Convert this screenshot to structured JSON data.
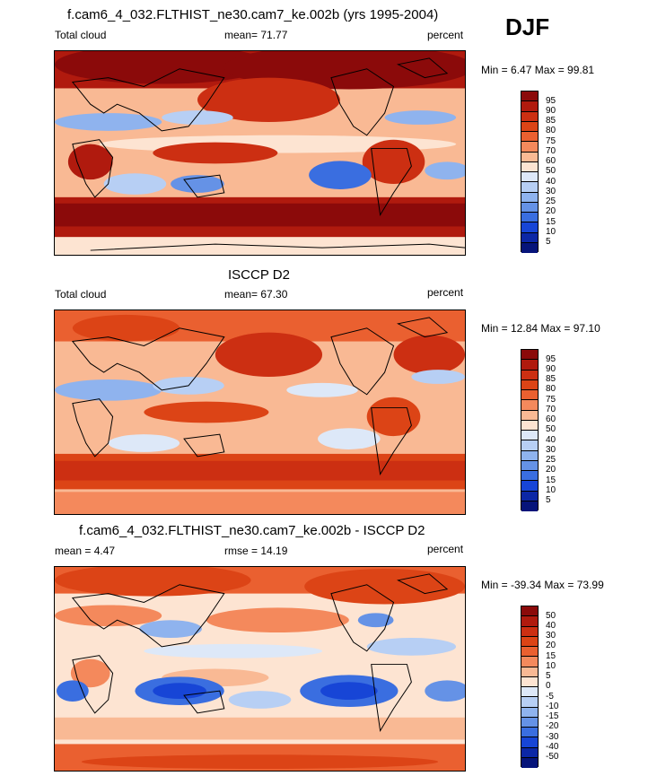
{
  "season": "DJF",
  "panels": [
    {
      "title": "f.cam6_4_032.FLTHIST_ne30.cam7_ke.002b (yrs 1995-2004)",
      "left_label": "Total cloud",
      "stat_label": "mean=  71.77",
      "units": "percent",
      "minmax": "Min =   6.47 Max =  99.81",
      "colorbar_labels": [
        "95",
        "90",
        "85",
        "80",
        "75",
        "70",
        "60",
        "50",
        "40",
        "30",
        "25",
        "20",
        "15",
        "10",
        "5"
      ],
      "colors": [
        "#8b0a0a",
        "#b01a0e",
        "#cc2f12",
        "#dc4416",
        "#ea6030",
        "#f4895c",
        "#f9b994",
        "#fde4d2",
        "#dde8f8",
        "#b7cff4",
        "#8fb3ee",
        "#6592e6",
        "#3a6ee0",
        "#1745d6",
        "#0c27a6",
        "#06147a"
      ]
    },
    {
      "title": "ISCCP D2",
      "left_label": "Total cloud",
      "stat_label": "mean=  67.30",
      "units": "percent",
      "minmax": "Min =  12.84 Max =  97.10",
      "colorbar_labels": [
        "95",
        "90",
        "85",
        "80",
        "75",
        "70",
        "60",
        "50",
        "40",
        "30",
        "25",
        "20",
        "15",
        "10",
        "5"
      ],
      "colors": [
        "#8b0a0a",
        "#b01a0e",
        "#cc2f12",
        "#dc4416",
        "#ea6030",
        "#f4895c",
        "#f9b994",
        "#fde4d2",
        "#dde8f8",
        "#b7cff4",
        "#8fb3ee",
        "#6592e6",
        "#3a6ee0",
        "#1745d6",
        "#0c27a6",
        "#06147a"
      ]
    },
    {
      "title": "f.cam6_4_032.FLTHIST_ne30.cam7_ke.002b - ISCCP D2",
      "left_label": "mean =   4.47",
      "stat_label": "rmse =  14.19",
      "units": "percent",
      "minmax": "Min = -39.34 Max =  73.99",
      "colorbar_labels": [
        "50",
        "40",
        "30",
        "20",
        "15",
        "10",
        "5",
        "0",
        "-5",
        "-10",
        "-15",
        "-20",
        "-30",
        "-40",
        "-50"
      ],
      "colors": [
        "#8b0a0a",
        "#b01a0e",
        "#cc2f12",
        "#dc4416",
        "#ea6030",
        "#f4895c",
        "#f9b994",
        "#fde4d2",
        "#dde8f8",
        "#b7cff4",
        "#8fb3ee",
        "#6592e6",
        "#3a6ee0",
        "#1745d6",
        "#0c27a6",
        "#06147a"
      ]
    }
  ]
}
